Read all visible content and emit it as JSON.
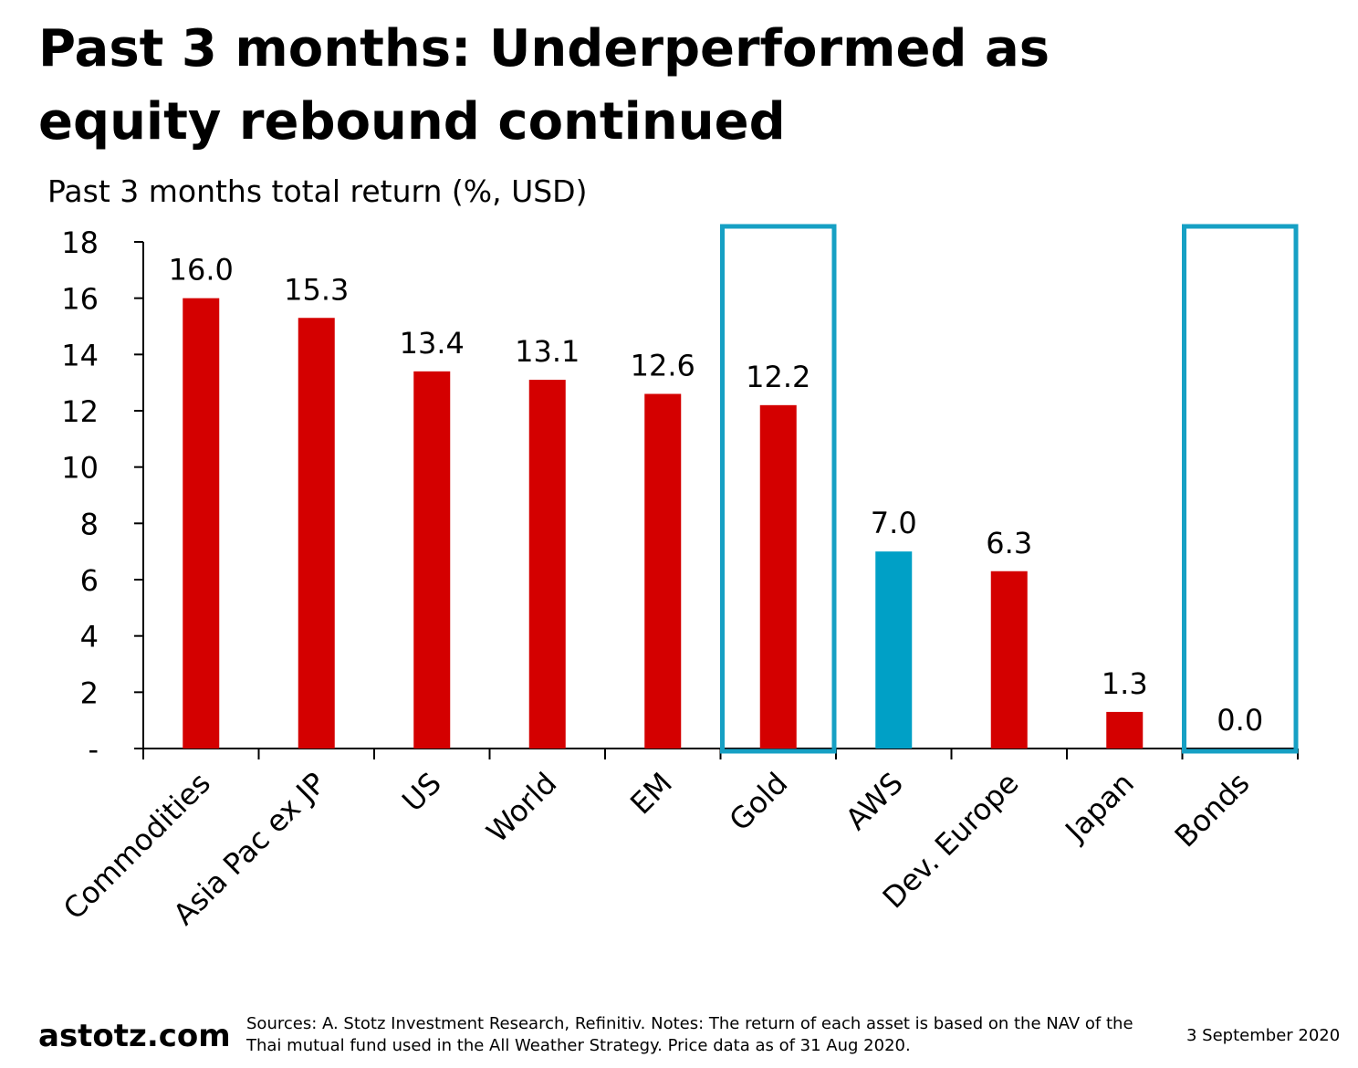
{
  "chart_data": {
    "type": "bar",
    "title": "Past 3 months: Underperformed as equity rebound continued",
    "subtitle": "Past 3 months total return (%, USD)",
    "categories": [
      "Commodities",
      "Asia Pac ex JP",
      "US",
      "World",
      "EM",
      "Gold",
      "AWS",
      "Dev. Europe",
      "Japan",
      "Bonds"
    ],
    "values": [
      16.0,
      15.3,
      13.4,
      13.1,
      12.6,
      12.2,
      7.0,
      6.3,
      1.3,
      0.0
    ],
    "value_labels": [
      "16.0",
      "15.3",
      "13.4",
      "13.1",
      "12.6",
      "12.2",
      "7.0",
      "6.3",
      "1.3",
      "0.0"
    ],
    "colors": [
      "#d40000",
      "#d40000",
      "#d40000",
      "#d40000",
      "#d40000",
      "#d40000",
      "#00a0c6",
      "#d40000",
      "#d40000",
      "#d40000"
    ],
    "highlight": {
      "color": "#16a0c4",
      "categories": [
        5,
        9
      ]
    },
    "ylim": [
      0,
      18
    ],
    "yticks": [
      {
        "value": 0,
        "label": "-"
      },
      2,
      4,
      6,
      8,
      10,
      12,
      14,
      16,
      18
    ],
    "grid": false,
    "footer": {
      "brand": "astotz.com",
      "source": "Sources: A. Stotz Investment Research, Refinitiv. Notes: The return of each asset is based on the NAV of the Thai mutual fund used in the All Weather Strategy. Price data as of 31 Aug 2020.",
      "date": "3 September 2020"
    }
  }
}
